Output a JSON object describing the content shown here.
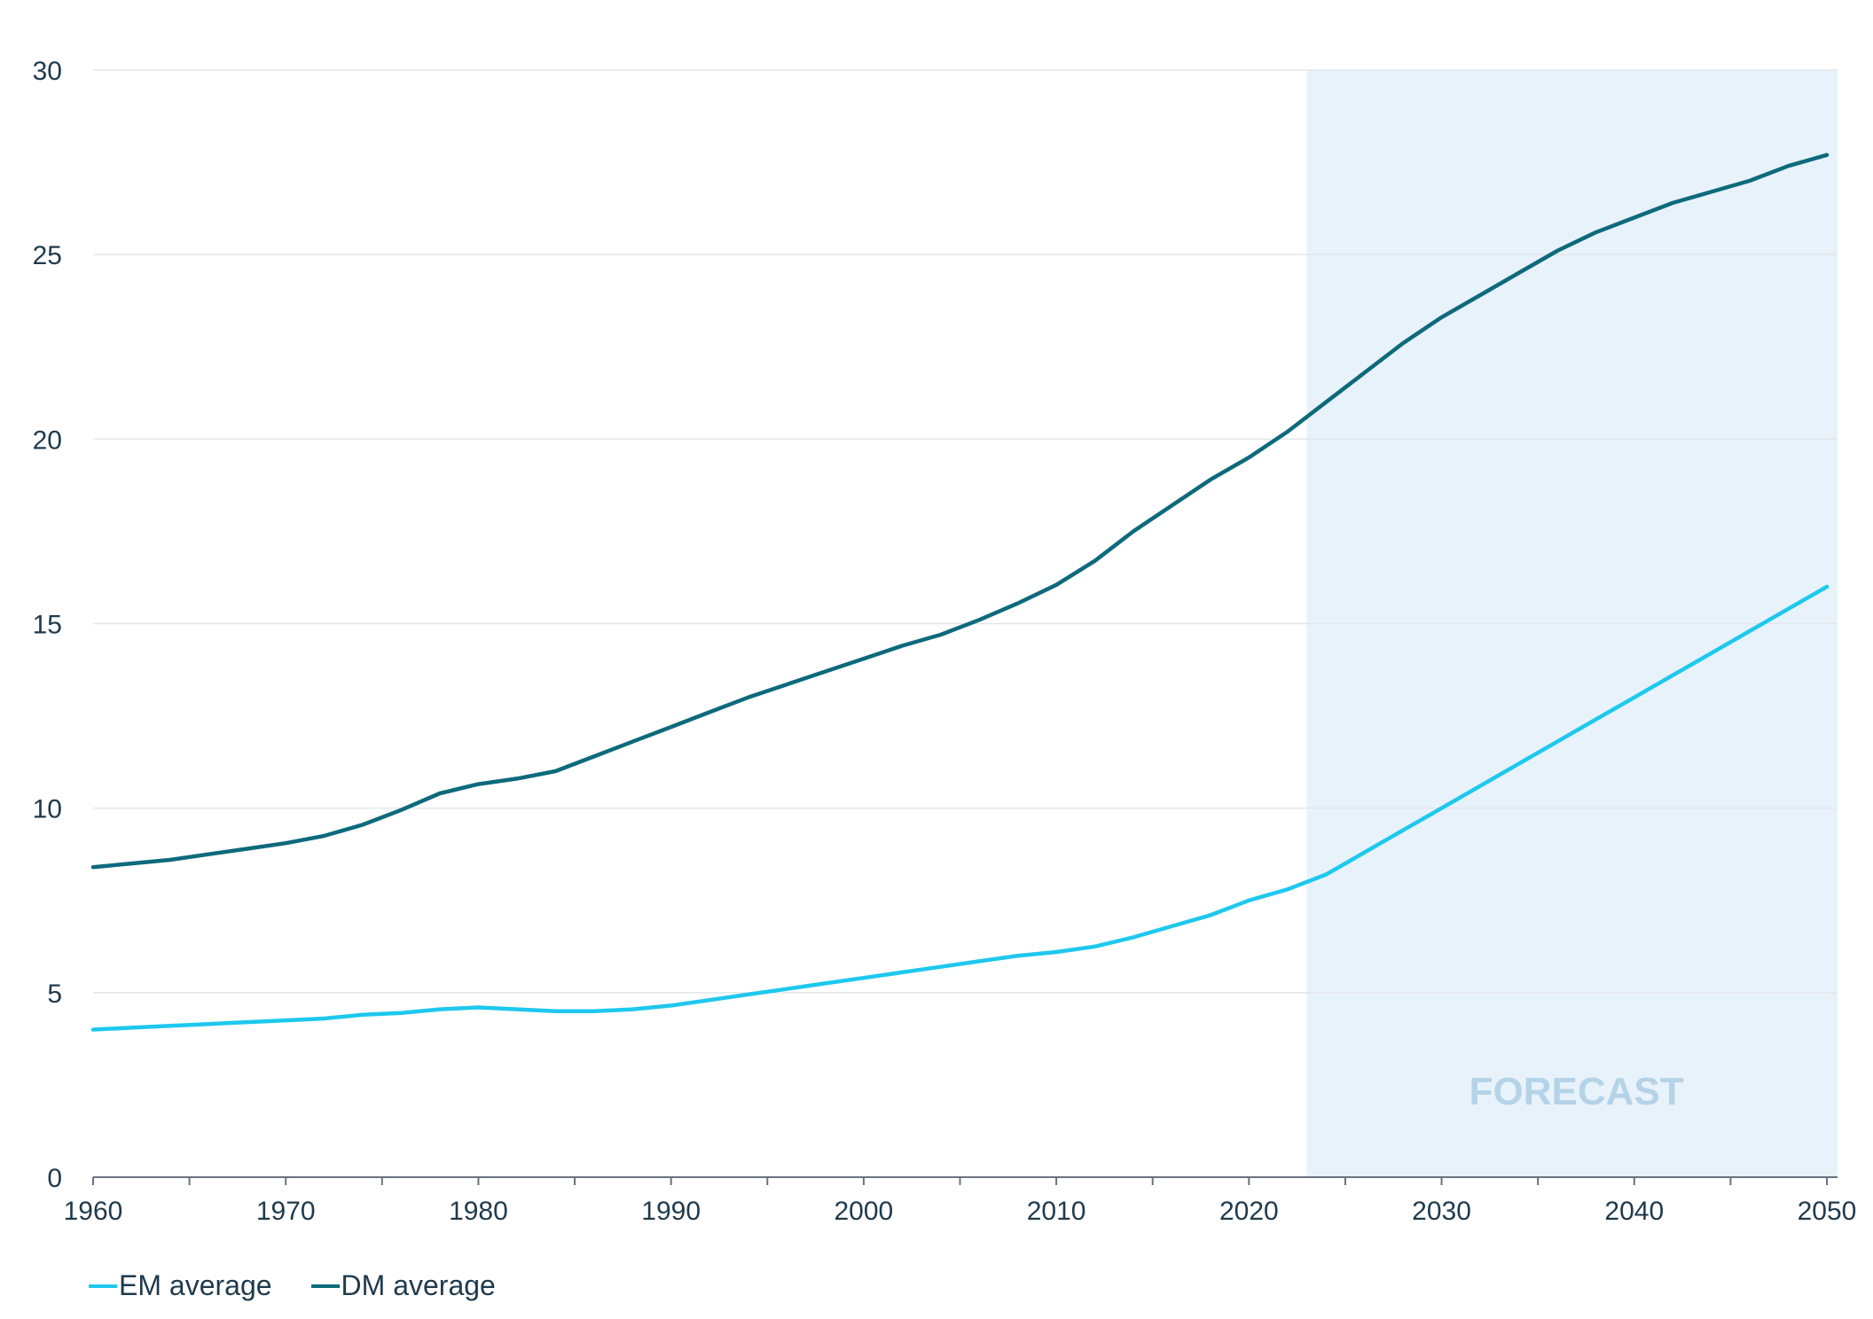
{
  "chart_data": {
    "type": "line",
    "title": "",
    "xlabel": "",
    "ylabel": "",
    "xlim": [
      1960,
      2050
    ],
    "ylim": [
      0,
      30
    ],
    "y_ticks": [
      0,
      5,
      10,
      15,
      20,
      25,
      30
    ],
    "x_ticks": [
      1960,
      1970,
      1980,
      1990,
      2000,
      2010,
      2020,
      2030,
      2040,
      2050
    ],
    "grid": "horizontal",
    "legend_position": "bottom-left",
    "forecast_region": {
      "start": 2023,
      "end": 2050,
      "label": "FORECAST",
      "color": "#e8f2fa",
      "label_color": "#b5d3e8"
    },
    "series": [
      {
        "name": "EM average",
        "color": "#1ec8ee",
        "x": [
          1960,
          1962,
          1964,
          1966,
          1968,
          1970,
          1972,
          1974,
          1976,
          1978,
          1980,
          1982,
          1984,
          1986,
          1988,
          1990,
          1992,
          1994,
          1996,
          1998,
          2000,
          2002,
          2004,
          2006,
          2008,
          2010,
          2012,
          2014,
          2016,
          2018,
          2020,
          2022,
          2024,
          2026,
          2028,
          2030,
          2032,
          2034,
          2036,
          2038,
          2040,
          2042,
          2044,
          2046,
          2048,
          2050
        ],
        "values": [
          4.0,
          4.05,
          4.1,
          4.15,
          4.2,
          4.25,
          4.3,
          4.4,
          4.45,
          4.55,
          4.6,
          4.55,
          4.5,
          4.5,
          4.55,
          4.65,
          4.8,
          4.95,
          5.1,
          5.25,
          5.4,
          5.55,
          5.7,
          5.85,
          6.0,
          6.1,
          6.25,
          6.5,
          6.8,
          7.1,
          7.5,
          7.8,
          8.2,
          8.8,
          9.4,
          10.0,
          10.6,
          11.2,
          11.8,
          12.4,
          13.0,
          13.6,
          14.2,
          14.8,
          15.4,
          16.0
        ]
      },
      {
        "name": "DM average",
        "color": "#0c6a7c",
        "x": [
          1960,
          1962,
          1964,
          1966,
          1968,
          1970,
          1972,
          1974,
          1976,
          1978,
          1980,
          1982,
          1984,
          1986,
          1988,
          1990,
          1992,
          1994,
          1996,
          1998,
          2000,
          2002,
          2004,
          2006,
          2008,
          2010,
          2012,
          2014,
          2016,
          2018,
          2020,
          2022,
          2024,
          2026,
          2028,
          2030,
          2032,
          2034,
          2036,
          2038,
          2040,
          2042,
          2044,
          2046,
          2048,
          2050
        ],
        "values": [
          8.4,
          8.5,
          8.6,
          8.75,
          8.9,
          9.05,
          9.25,
          9.55,
          9.95,
          10.4,
          10.65,
          10.8,
          11.0,
          11.4,
          11.8,
          12.2,
          12.6,
          13.0,
          13.35,
          13.7,
          14.05,
          14.4,
          14.7,
          15.1,
          15.55,
          16.05,
          16.7,
          17.5,
          18.2,
          18.9,
          19.5,
          20.2,
          21.0,
          21.8,
          22.6,
          23.3,
          23.9,
          24.5,
          25.1,
          25.6,
          26.0,
          26.4,
          26.7,
          27.0,
          27.4,
          27.7
        ]
      }
    ]
  }
}
